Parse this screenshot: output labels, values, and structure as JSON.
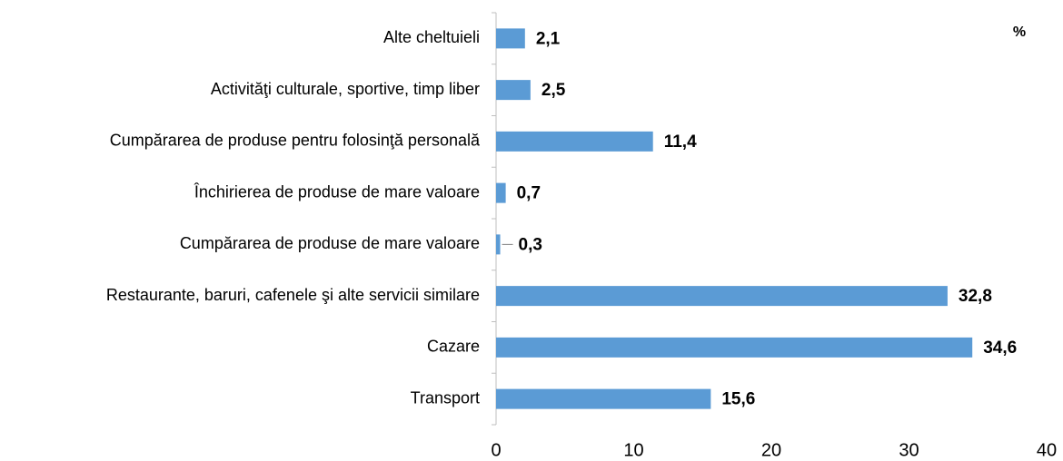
{
  "chart_data": {
    "type": "barh",
    "annotations": [
      "%"
    ],
    "categories": [
      "Alte cheltuieli",
      "Activităţi culturale, sportive, timp liber",
      "Cumpărarea de produse pentru folosinţă personală",
      "Închirierea de produse de mare valoare",
      "Cumpărarea de produse de mare valoare",
      "Restaurante, baruri, cafenele şi alte servicii similare",
      "Cazare",
      "Transport"
    ],
    "values": [
      2.1,
      2.5,
      11.4,
      0.7,
      0.3,
      32.8,
      34.6,
      15.6
    ],
    "value_labels": [
      "2,1",
      "2,5",
      "11,4",
      "0,7",
      "0,3",
      "32,8",
      "34,6",
      "15,6"
    ],
    "color": "#5b9bd5",
    "xlim": [
      0,
      40
    ],
    "xticks": [
      0,
      10,
      20,
      30,
      40
    ],
    "grid": false
  }
}
